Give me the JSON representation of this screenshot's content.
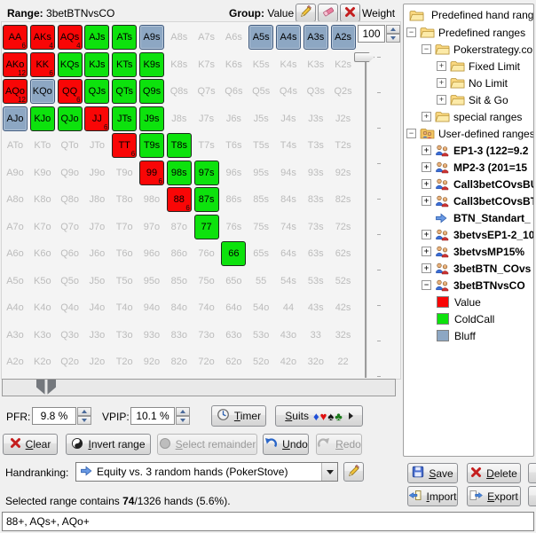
{
  "header": {
    "range_label": "Range:",
    "range_value": "3betBTNvsCO",
    "group_label": "Group:",
    "group_value": "Value",
    "weight_label": "Weight",
    "weight_value": "100"
  },
  "colors": {
    "value": "#f90606",
    "coldcall": "#0de20d",
    "bluff": "#8da7c3"
  },
  "grid": {
    "labels": [
      [
        "AA",
        "AKs",
        "AQs",
        "AJs",
        "ATs",
        "A9s",
        "A8s",
        "A7s",
        "A6s",
        "A5s",
        "A4s",
        "A3s",
        "A2s"
      ],
      [
        "AKo",
        "KK",
        "KQs",
        "KJs",
        "KTs",
        "K9s",
        "K8s",
        "K7s",
        "K6s",
        "K5s",
        "K4s",
        "K3s",
        "K2s"
      ],
      [
        "AQo",
        "KQo",
        "QQ",
        "QJs",
        "QTs",
        "Q9s",
        "Q8s",
        "Q7s",
        "Q6s",
        "Q5s",
        "Q4s",
        "Q3s",
        "Q2s"
      ],
      [
        "AJo",
        "KJo",
        "QJo",
        "JJ",
        "JTs",
        "J9s",
        "J8s",
        "J7s",
        "J6s",
        "J5s",
        "J4s",
        "J3s",
        "J2s"
      ],
      [
        "ATo",
        "KTo",
        "QTo",
        "JTo",
        "TT",
        "T9s",
        "T8s",
        "T7s",
        "T6s",
        "T5s",
        "T4s",
        "T3s",
        "T2s"
      ],
      [
        "A9o",
        "K9o",
        "Q9o",
        "J9o",
        "T9o",
        "99",
        "98s",
        "97s",
        "96s",
        "95s",
        "94s",
        "93s",
        "92s"
      ],
      [
        "A8o",
        "K8o",
        "Q8o",
        "J8o",
        "T8o",
        "98o",
        "88",
        "87s",
        "86s",
        "85s",
        "84s",
        "83s",
        "82s"
      ],
      [
        "A7o",
        "K7o",
        "Q7o",
        "J7o",
        "T7o",
        "97o",
        "87o",
        "77",
        "76s",
        "75s",
        "74s",
        "73s",
        "72s"
      ],
      [
        "A6o",
        "K6o",
        "Q6o",
        "J6o",
        "T6o",
        "96o",
        "86o",
        "76o",
        "66",
        "65s",
        "64s",
        "63s",
        "62s"
      ],
      [
        "A5o",
        "K5o",
        "Q5o",
        "J5o",
        "T5o",
        "95o",
        "85o",
        "75o",
        "65o",
        "55",
        "54s",
        "53s",
        "52s"
      ],
      [
        "A4o",
        "K4o",
        "Q4o",
        "J4o",
        "T4o",
        "94o",
        "84o",
        "74o",
        "64o",
        "54o",
        "44",
        "43s",
        "42s"
      ],
      [
        "A3o",
        "K3o",
        "Q3o",
        "J3o",
        "T3o",
        "93o",
        "83o",
        "73o",
        "63o",
        "53o",
        "43o",
        "33",
        "32s"
      ],
      [
        "A2o",
        "K2o",
        "Q2o",
        "J2o",
        "T2o",
        "92o",
        "82o",
        "72o",
        "62o",
        "52o",
        "42o",
        "32o",
        "22"
      ]
    ],
    "value_counts": {
      "AA": 6,
      "AKs": 4,
      "AQs": 4,
      "AKo": 12,
      "KK": 6,
      "AQo": 12,
      "QQ": 6,
      "JJ": 6,
      "TT": 6,
      "99": 6,
      "88": 6
    },
    "coldcall": [
      "AJs",
      "ATs",
      "KQs",
      "KJs",
      "KTs",
      "K9s",
      "QJs",
      "QTs",
      "Q9s",
      "KJo",
      "QJo",
      "JTs",
      "J9s",
      "T9s",
      "T8s",
      "98s",
      "97s",
      "87s",
      "77",
      "66"
    ],
    "bluff": [
      "A9s",
      "A5s",
      "A4s",
      "A3s",
      "A2s",
      "KQo",
      "AJo"
    ]
  },
  "controls": {
    "pfr_label": "PFR:",
    "pfr_value": "9.8 %",
    "vpip_label": "VPIP:",
    "vpip_value": "10.1 %",
    "timer": "Timer",
    "suits": "Suits",
    "suit_symbols": [
      "♦",
      "♥",
      "♠",
      "♣"
    ],
    "clear": "Clear",
    "invert": "Invert range",
    "select_remainder": "Select remainder",
    "undo": "Undo",
    "redo": "Redo"
  },
  "handranking": {
    "label": "Handranking:",
    "selected": "Equity vs. 3 random hands (PokerStove)"
  },
  "status": {
    "prefix": "Selected range contains ",
    "count": "74",
    "suffix": "/1326 hands (5.6%)."
  },
  "range_string": "88+, AQs+, AQo+",
  "sidebar": {
    "title": "Predefined hand ranges",
    "items": [
      {
        "label": "Predefined ranges",
        "level": 1,
        "expander": "-",
        "icon": "folder",
        "bold": false
      },
      {
        "label": "Pokerstrategy.co",
        "level": 2,
        "expander": "-",
        "icon": "folder",
        "bold": false
      },
      {
        "label": "Fixed Limit",
        "level": 3,
        "expander": "+",
        "icon": "folder",
        "bold": false
      },
      {
        "label": "No Limit",
        "level": 3,
        "expander": "+",
        "icon": "folder",
        "bold": false
      },
      {
        "label": "Sit & Go",
        "level": 3,
        "expander": "+",
        "icon": "folder",
        "bold": false
      },
      {
        "label": "special ranges",
        "level": 2,
        "expander": "+",
        "icon": "folder",
        "bold": false
      },
      {
        "label": "User-defined ranges",
        "level": 1,
        "expander": "-",
        "icon": "folder-users",
        "bold": false
      },
      {
        "label": "EP1-3 (122=9.2",
        "level": 2,
        "expander": "+",
        "icon": "people",
        "bold": true
      },
      {
        "label": "MP2-3 (201=15",
        "level": 2,
        "expander": "+",
        "icon": "people",
        "bold": true
      },
      {
        "label": "Call3betCOvsBU",
        "level": 2,
        "expander": "+",
        "icon": "people",
        "bold": true
      },
      {
        "label": "Call3betCOvsBT",
        "level": 2,
        "expander": "+",
        "icon": "people",
        "bold": true
      },
      {
        "label": "BTN_Standart_",
        "level": 2,
        "expander": null,
        "icon": "arrow",
        "bold": true
      },
      {
        "label": "3betvsEP1-2_10",
        "level": 2,
        "expander": "+",
        "icon": "people",
        "bold": true
      },
      {
        "label": "3betvsMP15%",
        "level": 2,
        "expander": "+",
        "icon": "people",
        "bold": true
      },
      {
        "label": "3betBTN_COvs",
        "level": 2,
        "expander": "+",
        "icon": "people",
        "bold": true
      },
      {
        "label": "3betBTNvsCO",
        "level": 2,
        "expander": "-",
        "icon": "people",
        "bold": true
      },
      {
        "label": "Value",
        "level": 3,
        "expander": null,
        "icon": "swatch:value",
        "bold": false
      },
      {
        "label": "ColdCall",
        "level": 3,
        "expander": null,
        "icon": "swatch:coldcall",
        "bold": false
      },
      {
        "label": "Bluff",
        "level": 3,
        "expander": null,
        "icon": "swatch:bluff",
        "bold": false
      }
    ]
  },
  "actions": {
    "save": "Save",
    "delete": "Delete",
    "import": "Import",
    "export": "Export"
  }
}
